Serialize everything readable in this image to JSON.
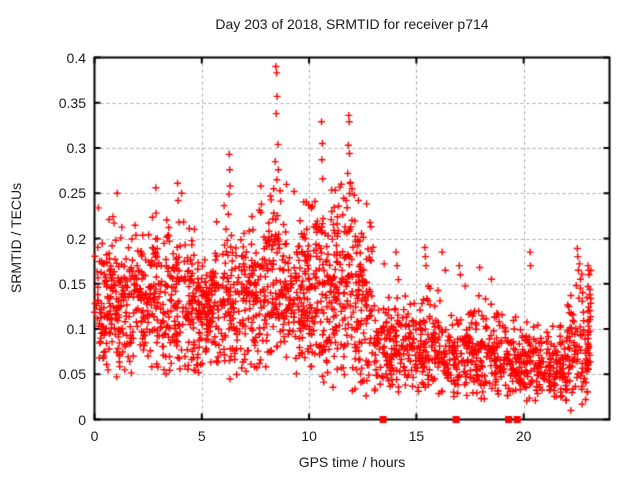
{
  "page": {
    "background": "#ffffff"
  },
  "chart_data": {
    "type": "scatter",
    "title": "Day 203 of 2018, SRMTID for receiver p714",
    "xlabel": "GPS time / hours",
    "ylabel": "SRMTID / TECUs",
    "xlim": [
      0,
      24
    ],
    "ylim": [
      0,
      0.4
    ],
    "x_ticks": [
      {
        "value": 0,
        "label": "0"
      },
      {
        "value": 5,
        "label": "5"
      },
      {
        "value": 10,
        "label": "10"
      },
      {
        "value": 15,
        "label": "15"
      },
      {
        "value": 20,
        "label": "20"
      }
    ],
    "y_ticks": [
      {
        "value": 0,
        "label": "0"
      },
      {
        "value": 0.05,
        "label": "0.05"
      },
      {
        "value": 0.1,
        "label": "0.1"
      },
      {
        "value": 0.15,
        "label": "0.15"
      },
      {
        "value": 0.2,
        "label": "0.2"
      },
      {
        "value": 0.25,
        "label": "0.25"
      },
      {
        "value": 0.3,
        "label": "0.3"
      },
      {
        "value": 0.35,
        "label": "0.35"
      },
      {
        "value": 0.4,
        "label": "0.4"
      }
    ],
    "grid": {
      "show": true,
      "style": "dashed",
      "color": "#a8a8a8"
    },
    "axis_color": "#000000",
    "text_color": "#1a1a1a",
    "legend": {
      "show": false
    },
    "seed": 1234567,
    "series": [
      {
        "name": "SRMTID",
        "marker": "plus",
        "marker_size": 7,
        "color": "#ff0000",
        "band_profile": [
          {
            "x0": 0,
            "x1": 1,
            "count": 105,
            "mean": 0.135,
            "sd": 0.038,
            "min": 0.05,
            "max": 0.24
          },
          {
            "x0": 1,
            "x1": 2,
            "count": 105,
            "mean": 0.125,
            "sd": 0.036,
            "min": 0.045,
            "max": 0.23
          },
          {
            "x0": 2,
            "x1": 3,
            "count": 105,
            "mean": 0.128,
            "sd": 0.038,
            "min": 0.055,
            "max": 0.23
          },
          {
            "x0": 3,
            "x1": 4,
            "count": 105,
            "mean": 0.122,
            "sd": 0.04,
            "min": 0.05,
            "max": 0.235
          },
          {
            "x0": 4,
            "x1": 5,
            "count": 105,
            "mean": 0.125,
            "sd": 0.04,
            "min": 0.05,
            "max": 0.23
          },
          {
            "x0": 5,
            "x1": 6,
            "count": 105,
            "mean": 0.13,
            "sd": 0.036,
            "min": 0.055,
            "max": 0.22
          },
          {
            "x0": 6,
            "x1": 7,
            "count": 105,
            "mean": 0.13,
            "sd": 0.042,
            "min": 0.04,
            "max": 0.24
          },
          {
            "x0": 7,
            "x1": 8,
            "count": 105,
            "mean": 0.132,
            "sd": 0.042,
            "min": 0.05,
            "max": 0.24
          },
          {
            "x0": 8,
            "x1": 9,
            "count": 115,
            "mean": 0.148,
            "sd": 0.048,
            "min": 0.06,
            "max": 0.27
          },
          {
            "x0": 9,
            "x1": 10,
            "count": 110,
            "mean": 0.132,
            "sd": 0.042,
            "min": 0.05,
            "max": 0.25
          },
          {
            "x0": 10,
            "x1": 11,
            "count": 115,
            "mean": 0.142,
            "sd": 0.048,
            "min": 0.04,
            "max": 0.26
          },
          {
            "x0": 11,
            "x1": 12,
            "count": 120,
            "mean": 0.155,
            "sd": 0.052,
            "min": 0.03,
            "max": 0.27
          },
          {
            "x0": 12,
            "x1": 13,
            "count": 110,
            "mean": 0.125,
            "sd": 0.052,
            "min": 0.025,
            "max": 0.26
          },
          {
            "x0": 13,
            "x1": 14,
            "count": 85,
            "mean": 0.08,
            "sd": 0.03,
            "min": 0.03,
            "max": 0.16
          },
          {
            "x0": 14,
            "x1": 15,
            "count": 85,
            "mean": 0.085,
            "sd": 0.03,
            "min": 0.03,
            "max": 0.17
          },
          {
            "x0": 15,
            "x1": 16,
            "count": 85,
            "mean": 0.08,
            "sd": 0.03,
            "min": 0.03,
            "max": 0.17
          },
          {
            "x0": 16,
            "x1": 17,
            "count": 85,
            "mean": 0.072,
            "sd": 0.027,
            "min": 0.025,
            "max": 0.15
          },
          {
            "x0": 17,
            "x1": 18,
            "count": 85,
            "mean": 0.07,
            "sd": 0.026,
            "min": 0.025,
            "max": 0.15
          },
          {
            "x0": 18,
            "x1": 19,
            "count": 85,
            "mean": 0.07,
            "sd": 0.026,
            "min": 0.02,
            "max": 0.15
          },
          {
            "x0": 19,
            "x1": 20,
            "count": 85,
            "mean": 0.066,
            "sd": 0.024,
            "min": 0.025,
            "max": 0.13
          },
          {
            "x0": 20,
            "x1": 21,
            "count": 85,
            "mean": 0.062,
            "sd": 0.024,
            "min": 0.02,
            "max": 0.14
          },
          {
            "x0": 21,
            "x1": 22,
            "count": 85,
            "mean": 0.058,
            "sd": 0.022,
            "min": 0.02,
            "max": 0.12
          },
          {
            "x0": 22,
            "x1": 23.05,
            "count": 95,
            "mean": 0.072,
            "sd": 0.032,
            "min": 0.015,
            "max": 0.17
          },
          {
            "x0": 22.95,
            "x1": 23.15,
            "count": 22,
            "mean": 0.105,
            "sd": 0.038,
            "min": 0.05,
            "max": 0.17
          }
        ],
        "outliers": [
          [
            0.68,
            0.221
          ],
          [
            0.91,
            0.217
          ],
          [
            1.06,
            0.25
          ],
          [
            2.86,
            0.256
          ],
          [
            2.87,
            0.228
          ],
          [
            3.87,
            0.261
          ],
          [
            3.9,
            0.242
          ],
          [
            3.94,
            0.218
          ],
          [
            4.06,
            0.25
          ],
          [
            6.28,
            0.293
          ],
          [
            6.3,
            0.276
          ],
          [
            6.32,
            0.258
          ],
          [
            6.27,
            0.249
          ],
          [
            7.75,
            0.258
          ],
          [
            7.78,
            0.238
          ],
          [
            8.2,
            0.247
          ],
          [
            8.35,
            0.255
          ],
          [
            8.45,
            0.39
          ],
          [
            8.49,
            0.383
          ],
          [
            8.51,
            0.357
          ],
          [
            8.47,
            0.338
          ],
          [
            8.55,
            0.304
          ],
          [
            8.42,
            0.285
          ],
          [
            8.57,
            0.276
          ],
          [
            8.5,
            0.265
          ],
          [
            9.3,
            0.252
          ],
          [
            10.58,
            0.329
          ],
          [
            10.62,
            0.305
          ],
          [
            10.6,
            0.287
          ],
          [
            10.63,
            0.266
          ],
          [
            11.5,
            0.26
          ],
          [
            11.85,
            0.336
          ],
          [
            11.87,
            0.329
          ],
          [
            11.83,
            0.303
          ],
          [
            11.88,
            0.294
          ],
          [
            11.8,
            0.272
          ],
          [
            11.92,
            0.262
          ],
          [
            12.0,
            0.255
          ],
          [
            12.1,
            0.248
          ],
          [
            12.3,
            0.242
          ],
          [
            13.5,
            0.172
          ],
          [
            14.05,
            0.185
          ],
          [
            14.1,
            0.17
          ],
          [
            15.4,
            0.19
          ],
          [
            15.42,
            0.18
          ],
          [
            15.45,
            0.17
          ],
          [
            16.2,
            0.185
          ],
          [
            16.35,
            0.165
          ],
          [
            17.0,
            0.17
          ],
          [
            17.05,
            0.16
          ],
          [
            17.95,
            0.168
          ],
          [
            18.5,
            0.155
          ],
          [
            20.3,
            0.185
          ],
          [
            20.32,
            0.17
          ],
          [
            22.2,
            0.01
          ],
          [
            22.45,
            0.148
          ],
          [
            22.5,
            0.189
          ],
          [
            22.52,
            0.18
          ],
          [
            22.55,
            0.165
          ],
          [
            22.6,
            0.172
          ],
          [
            22.65,
            0.155
          ],
          [
            23.0,
            0.17
          ],
          [
            23.05,
            0.16
          ]
        ]
      },
      {
        "name": "zero-markers",
        "marker": "square",
        "marker_size": 7,
        "color": "#ff0000",
        "points": [
          [
            13.45,
            0
          ],
          [
            16.85,
            0
          ],
          [
            19.3,
            0
          ],
          [
            19.7,
            0
          ]
        ]
      }
    ]
  }
}
